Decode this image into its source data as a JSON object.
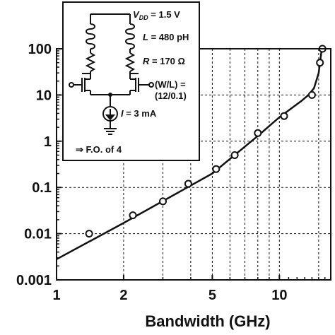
{
  "chart_data": {
    "type": "scatter",
    "xlabel": "Bandwidth (GHz)",
    "ylabel": "",
    "x_scale": "log",
    "y_scale": "log",
    "xlim": [
      1,
      17
    ],
    "ylim": [
      0.001,
      100
    ],
    "x_ticks": [
      "1",
      "2",
      "5",
      "10"
    ],
    "y_ticks": [
      "0.001",
      "0.01",
      "0.1",
      "1",
      "10",
      "100"
    ],
    "grid": "dashed",
    "series": [
      {
        "kind": "measured",
        "marker": "open-circle",
        "points": [
          {
            "x": 1.4,
            "y": 0.01
          },
          {
            "x": 2.2,
            "y": 0.025
          },
          {
            "x": 3.0,
            "y": 0.05
          },
          {
            "x": 3.9,
            "y": 0.12
          },
          {
            "x": 5.2,
            "y": 0.25
          },
          {
            "x": 6.3,
            "y": 0.5
          },
          {
            "x": 8.0,
            "y": 1.5
          },
          {
            "x": 10.5,
            "y": 3.5
          },
          {
            "x": 14.0,
            "y": 10
          },
          {
            "x": 15.2,
            "y": 50
          },
          {
            "x": 15.6,
            "y": 100
          }
        ]
      },
      {
        "kind": "fit",
        "style": "solid-line",
        "points": [
          {
            "x": 1.0,
            "y": 0.0028
          },
          {
            "x": 2.0,
            "y": 0.017
          },
          {
            "x": 5.0,
            "y": 0.2
          },
          {
            "x": 8.0,
            "y": 1.3
          },
          {
            "x": 10.0,
            "y": 3.3
          },
          {
            "x": 12.5,
            "y": 7.3
          },
          {
            "x": 13.5,
            "y": 10
          },
          {
            "x": 14.3,
            "y": 14
          },
          {
            "x": 15.0,
            "y": 30
          },
          {
            "x": 15.5,
            "y": 100
          }
        ]
      }
    ],
    "inset": {
      "vdd": "= 1.5 V",
      "inductance": "= 480 pH",
      "resistance": "= 170 Ω",
      "wl_label": "(W/L) =",
      "wl_value": "(12/0.1)",
      "current": "= 3 mA",
      "fanout": "⇒ F.O. of 4"
    }
  }
}
